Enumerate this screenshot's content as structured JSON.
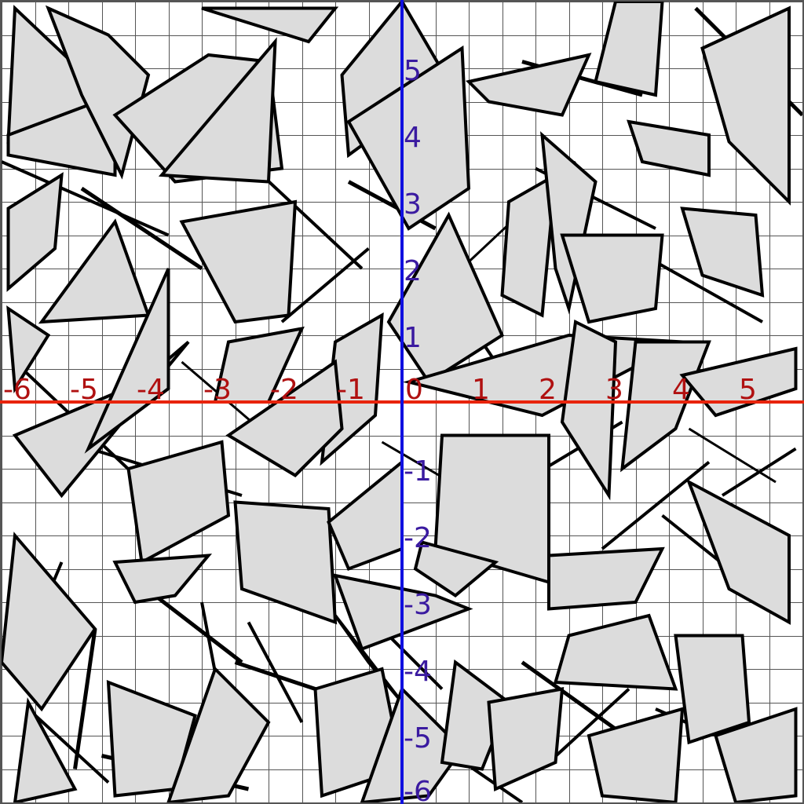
{
  "coordinate_plane": {
    "x_range": [
      -6,
      6
    ],
    "y_range": [
      -6,
      6
    ],
    "x_ticks": [
      "-6",
      "-5",
      "-4",
      "-3",
      "-2",
      "-1",
      "0",
      "1",
      "2",
      "3",
      "4",
      "5"
    ],
    "y_ticks": [
      "5",
      "4",
      "3",
      "2",
      "1",
      "-1",
      "-2",
      "-3",
      "-4",
      "-5",
      "-6"
    ],
    "grid": true,
    "x_axis_color": "#e8240c",
    "y_axis_color": "#1010e0",
    "shape_fill": "#dcdcdc",
    "shape_stroke": "#000000"
  },
  "shards": [
    [
      [
        -5.8,
        5.9
      ],
      [
        -4.0,
        4.2
      ],
      [
        -5.9,
        3.9
      ]
    ],
    [
      [
        -5.9,
        4.0
      ],
      [
        -4.3,
        4.6
      ],
      [
        -4.3,
        3.4
      ],
      [
        -5.9,
        3.7
      ]
    ],
    [
      [
        -5.3,
        5.9
      ],
      [
        -4.4,
        5.5
      ],
      [
        -3.8,
        4.9
      ],
      [
        -4.2,
        3.4
      ],
      [
        -4.8,
        4.6
      ]
    ],
    [
      [
        -4.3,
        4.3
      ],
      [
        -2.9,
        5.2
      ],
      [
        -2.0,
        5.1
      ],
      [
        -1.8,
        3.5
      ],
      [
        -3.4,
        3.3
      ]
    ],
    [
      [
        -3.0,
        5.9
      ],
      [
        -1.4,
        5.4
      ],
      [
        -1.0,
        5.9
      ]
    ],
    [
      [
        -3.6,
        3.4
      ],
      [
        -1.9,
        5.4
      ],
      [
        -2.0,
        3.3
      ]
    ],
    [
      [
        -5.4,
        1.2
      ],
      [
        -4.3,
        2.7
      ],
      [
        -3.8,
        1.3
      ]
    ],
    [
      [
        -5.8,
        -0.5
      ],
      [
        -3.9,
        0.3
      ],
      [
        -3.2,
        0.9
      ],
      [
        -5.1,
        -1.4
      ]
    ],
    [
      [
        -4.7,
        -0.7
      ],
      [
        -3.5,
        2.0
      ],
      [
        -3.5,
        0.2
      ]
    ],
    [
      [
        -3.3,
        2.7
      ],
      [
        -1.6,
        3.0
      ],
      [
        -1.7,
        1.3
      ],
      [
        -2.5,
        1.2
      ]
    ],
    [
      [
        -2.6,
        0.9
      ],
      [
        -1.5,
        1.1
      ],
      [
        -2.0,
        0.0
      ],
      [
        -2.8,
        0.0
      ]
    ],
    [
      [
        -1.0,
        0.9
      ],
      [
        -0.3,
        1.3
      ],
      [
        -0.4,
        -0.2
      ],
      [
        -1.2,
        -0.9
      ]
    ],
    [
      [
        -2.6,
        -0.5
      ],
      [
        -1.0,
        0.6
      ],
      [
        -0.9,
        -0.4
      ],
      [
        -1.6,
        -1.1
      ]
    ],
    [
      [
        -0.9,
        4.9
      ],
      [
        0.0,
        6.0
      ],
      [
        0.7,
        4.8
      ],
      [
        -0.8,
        3.7
      ]
    ],
    [
      [
        -0.8,
        4.2
      ],
      [
        0.9,
        5.3
      ],
      [
        1.0,
        3.2
      ],
      [
        0.1,
        2.6
      ]
    ],
    [
      [
        -0.2,
        1.2
      ],
      [
        0.7,
        2.8
      ],
      [
        1.5,
        1.0
      ],
      [
        0.4,
        0.3
      ]
    ],
    [
      [
        1.0,
        4.8
      ],
      [
        2.8,
        5.2
      ],
      [
        2.4,
        4.3
      ],
      [
        1.3,
        4.5
      ]
    ],
    [
      [
        1.6,
        3.0
      ],
      [
        2.3,
        3.4
      ],
      [
        2.1,
        1.3
      ],
      [
        1.5,
        1.6
      ]
    ],
    [
      [
        2.1,
        4.0
      ],
      [
        2.9,
        3.3
      ],
      [
        2.5,
        1.4
      ],
      [
        2.3,
        2.0
      ]
    ],
    [
      [
        2.4,
        2.5
      ],
      [
        3.9,
        2.5
      ],
      [
        3.8,
        1.4
      ],
      [
        2.8,
        1.2
      ]
    ],
    [
      [
        3.2,
        6.0
      ],
      [
        3.9,
        6.0
      ],
      [
        3.8,
        4.6
      ],
      [
        2.9,
        4.8
      ]
    ],
    [
      [
        3.4,
        4.2
      ],
      [
        4.6,
        4.0
      ],
      [
        4.6,
        3.4
      ],
      [
        3.6,
        3.6
      ]
    ],
    [
      [
        4.5,
        5.3
      ],
      [
        5.8,
        5.9
      ],
      [
        5.8,
        3.0
      ],
      [
        4.9,
        3.9
      ]
    ],
    [
      [
        4.2,
        2.9
      ],
      [
        5.3,
        2.8
      ],
      [
        5.4,
        1.6
      ],
      [
        4.5,
        1.9
      ]
    ],
    [
      [
        0.1,
        0.3
      ],
      [
        2.5,
        1.0
      ],
      [
        4.2,
        0.9
      ],
      [
        2.1,
        -0.2
      ]
    ],
    [
      [
        2.6,
        1.2
      ],
      [
        3.2,
        0.9
      ],
      [
        3.1,
        -1.4
      ],
      [
        2.4,
        -0.3
      ]
    ],
    [
      [
        3.5,
        0.9
      ],
      [
        4.6,
        0.9
      ],
      [
        4.1,
        -0.4
      ],
      [
        3.3,
        -1.0
      ]
    ],
    [
      [
        4.2,
        0.4
      ],
      [
        5.9,
        0.8
      ],
      [
        5.9,
        0.2
      ],
      [
        4.7,
        -0.2
      ]
    ],
    [
      [
        0.6,
        -0.5
      ],
      [
        2.2,
        -0.5
      ],
      [
        2.2,
        -2.7
      ],
      [
        0.5,
        -2.2
      ]
    ],
    [
      [
        -4.1,
        -1.0
      ],
      [
        -2.7,
        -0.6
      ],
      [
        -2.6,
        -1.7
      ],
      [
        -3.9,
        -2.4
      ]
    ],
    [
      [
        -4.3,
        -2.4
      ],
      [
        -2.9,
        -2.3
      ],
      [
        -3.4,
        -2.9
      ],
      [
        -4.0,
        -3.0
      ]
    ],
    [
      [
        -2.5,
        -1.5
      ],
      [
        -1.1,
        -1.6
      ],
      [
        -1.0,
        -3.3
      ],
      [
        -2.4,
        -2.8
      ]
    ],
    [
      [
        -1.1,
        -1.8
      ],
      [
        0.0,
        -0.9
      ],
      [
        0.0,
        -2.2
      ],
      [
        -0.8,
        -2.5
      ]
    ],
    [
      [
        -1.0,
        -2.6
      ],
      [
        0.5,
        -2.9
      ],
      [
        1.0,
        -3.1
      ],
      [
        -0.6,
        -3.7
      ]
    ],
    [
      [
        0.3,
        -2.1
      ],
      [
        1.4,
        -2.4
      ],
      [
        0.8,
        -2.9
      ],
      [
        0.2,
        -2.5
      ]
    ],
    [
      [
        -1.0,
        -3.2
      ],
      [
        0.0,
        -4.5
      ],
      [
        -0.5,
        -3.9
      ]
    ],
    [
      [
        -5.8,
        -2.0
      ],
      [
        -4.6,
        -3.4
      ],
      [
        -5.4,
        -4.6
      ],
      [
        -6.0,
        -3.9
      ]
    ],
    [
      [
        -5.6,
        -4.5
      ],
      [
        -4.9,
        -5.8
      ],
      [
        -5.8,
        -6.0
      ]
    ],
    [
      [
        -4.4,
        -4.2
      ],
      [
        -3.1,
        -4.7
      ],
      [
        -3.4,
        -5.8
      ],
      [
        -4.3,
        -5.9
      ]
    ],
    [
      [
        -2.8,
        -4.0
      ],
      [
        -2.0,
        -4.8
      ],
      [
        -2.6,
        -5.9
      ],
      [
        -3.5,
        -6.0
      ]
    ],
    [
      [
        -1.3,
        -4.3
      ],
      [
        -0.3,
        -4.0
      ],
      [
        0.0,
        -5.5
      ],
      [
        -1.2,
        -5.9
      ]
    ],
    [
      [
        0.0,
        -4.3
      ],
      [
        0.9,
        -5.2
      ],
      [
        0.4,
        -5.9
      ],
      [
        -0.6,
        -6.0
      ]
    ],
    [
      [
        0.8,
        -3.9
      ],
      [
        1.6,
        -4.5
      ],
      [
        1.2,
        -5.5
      ],
      [
        0.6,
        -5.4
      ]
    ],
    [
      [
        2.2,
        -2.3
      ],
      [
        3.9,
        -2.2
      ],
      [
        3.5,
        -3.0
      ],
      [
        2.2,
        -3.1
      ]
    ],
    [
      [
        2.5,
        -3.5
      ],
      [
        3.7,
        -3.2
      ],
      [
        4.1,
        -4.3
      ],
      [
        2.3,
        -4.2
      ]
    ],
    [
      [
        4.3,
        -1.2
      ],
      [
        5.8,
        -2.0
      ],
      [
        5.8,
        -3.3
      ],
      [
        4.9,
        -2.8
      ]
    ],
    [
      [
        4.1,
        -3.5
      ],
      [
        5.1,
        -3.5
      ],
      [
        5.2,
        -4.8
      ],
      [
        4.3,
        -5.1
      ]
    ],
    [
      [
        1.3,
        -4.5
      ],
      [
        2.4,
        -4.3
      ],
      [
        2.3,
        -5.4
      ],
      [
        1.4,
        -5.8
      ]
    ],
    [
      [
        2.8,
        -5.0
      ],
      [
        4.2,
        -4.6
      ],
      [
        4.1,
        -6.0
      ],
      [
        3.0,
        -5.9
      ]
    ],
    [
      [
        4.7,
        -5.0
      ],
      [
        5.9,
        -4.6
      ],
      [
        5.9,
        -5.9
      ],
      [
        5.0,
        -6.0
      ]
    ],
    [
      [
        -5.9,
        2.9
      ],
      [
        -5.1,
        3.4
      ],
      [
        -5.2,
        2.3
      ],
      [
        -5.9,
        1.7
      ]
    ],
    [
      [
        -5.9,
        1.4
      ],
      [
        -5.3,
        1.0
      ],
      [
        -5.8,
        0.2
      ]
    ]
  ],
  "strokes": [
    [
      -6.0,
      3.6,
      -3.5,
      2.5,
      4
    ],
    [
      -5.8,
      0.6,
      -4.0,
      -1.1,
      4
    ],
    [
      -4.8,
      3.2,
      -3.0,
      2.0,
      5
    ],
    [
      -5.0,
      -0.6,
      -2.4,
      -1.4,
      4
    ],
    [
      -3.7,
      -2.9,
      -2.4,
      -3.9,
      5
    ],
    [
      -2.5,
      -3.9,
      -0.4,
      -4.6,
      5
    ],
    [
      -0.9,
      -2.8,
      0.6,
      -4.3,
      4
    ],
    [
      -4.5,
      -5.3,
      -2.3,
      -5.8,
      5
    ],
    [
      -5.6,
      -4.6,
      -4.4,
      -5.7,
      4
    ],
    [
      -3.0,
      -3.0,
      -2.6,
      -5.1,
      4
    ],
    [
      0.6,
      1.8,
      1.8,
      0.0,
      4
    ],
    [
      1.0,
      2.1,
      2.6,
      3.6,
      3
    ],
    [
      1.8,
      5.1,
      3.6,
      4.6,
      5
    ],
    [
      3.8,
      2.1,
      5.4,
      1.2,
      4
    ],
    [
      2.0,
      3.5,
      3.8,
      2.6,
      4
    ],
    [
      4.4,
      5.9,
      6.0,
      4.3,
      5
    ],
    [
      4.8,
      -1.4,
      5.9,
      -0.7,
      4
    ],
    [
      3.9,
      -1.7,
      4.9,
      -2.5,
      4
    ],
    [
      1.8,
      -3.9,
      3.2,
      -4.9,
      5
    ],
    [
      3.8,
      -4.6,
      5.4,
      -5.3,
      4
    ],
    [
      2.2,
      -5.4,
      3.4,
      -4.3,
      4
    ],
    [
      -1.8,
      1.2,
      -0.5,
      2.3,
      4
    ],
    [
      -0.3,
      -0.6,
      0.9,
      -1.3,
      3
    ],
    [
      -2.3,
      -3.3,
      -1.5,
      -4.8,
      4
    ],
    [
      -4.6,
      -3.4,
      -4.9,
      -5.5,
      5
    ],
    [
      -2.1,
      3.4,
      -0.6,
      2.0,
      4
    ],
    [
      -0.8,
      3.3,
      0.5,
      2.6,
      5
    ],
    [
      4.3,
      -0.4,
      5.6,
      -1.2,
      3
    ],
    [
      0.2,
      -4.9,
      1.8,
      -6.0,
      4
    ],
    [
      3.0,
      -2.2,
      4.6,
      -0.9,
      4
    ],
    [
      -3.3,
      0.6,
      -1.9,
      -0.6,
      3
    ],
    [
      -5.1,
      -2.4,
      -5.6,
      -3.6,
      4
    ],
    [
      1.8,
      -1.2,
      3.3,
      -0.3,
      4
    ]
  ]
}
